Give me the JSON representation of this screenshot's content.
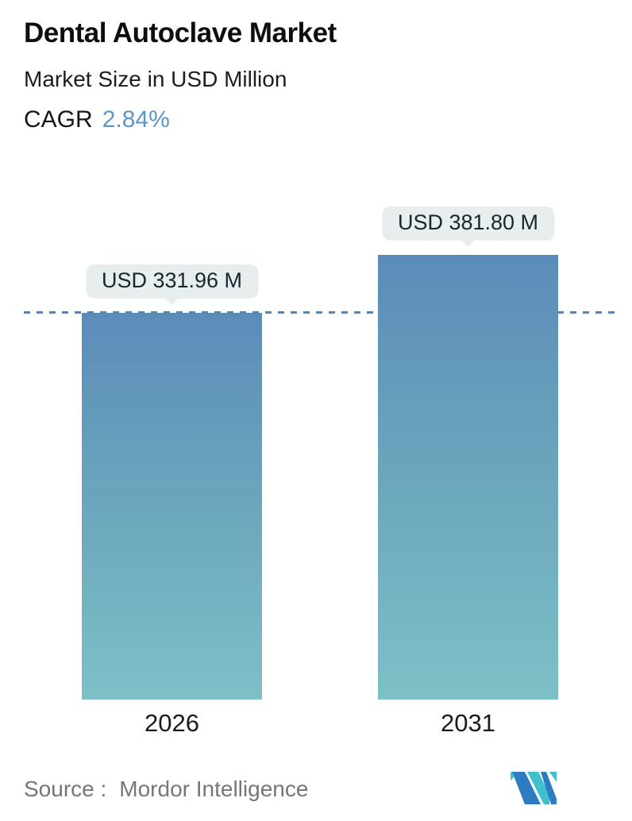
{
  "header": {
    "title": "Dental Autoclave Market",
    "subtitle": "Market Size in USD Million",
    "cagr_label": "CAGR",
    "cagr_value": "2.84%",
    "cagr_value_color": "#5e96c8"
  },
  "chart_data": {
    "type": "bar",
    "categories": [
      "2026",
      "2031"
    ],
    "values": [
      331.96,
      381.8
    ],
    "value_labels": [
      "USD 331.96 M",
      "USD 381.80 M"
    ],
    "unit": "USD Million",
    "title": "Dental Autoclave Market",
    "xlabel": "",
    "ylabel": "Market Size in USD Million",
    "ylim": [
      0,
      381.8
    ],
    "grid": false,
    "legend": "none",
    "reference_line": {
      "style": "dashed",
      "at_value": 331.96,
      "color": "#5b84ad"
    },
    "bar_gradient": {
      "top": "#5b8cb9",
      "bottom": "#7dc0c7"
    },
    "tooltip_background": "#e8eeee"
  },
  "footer": {
    "source_label": "Source :",
    "source_value": "Mordor Intelligence",
    "logo_colors": {
      "teal": "#3fc0ca",
      "blue": "#2d7cc1"
    }
  }
}
